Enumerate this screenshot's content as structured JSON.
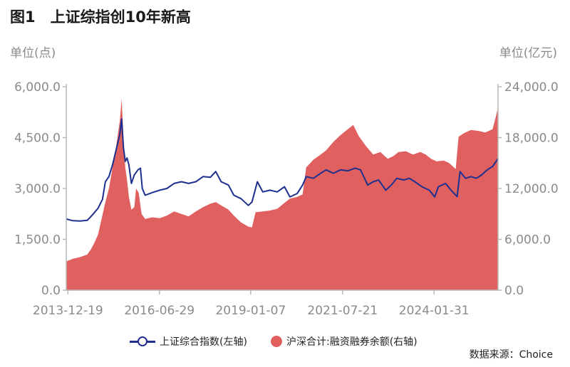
{
  "figure": {
    "title": "图1　上证综指创10年新高",
    "source": "数据来源：Choice"
  },
  "colors": {
    "index_line": "#1d2f8f",
    "margin_area": "#e06060"
  },
  "chart_data": {
    "type": "line+area",
    "title": "图1　上证综指创10年新高",
    "left_unit": "单位(点)",
    "right_unit": "单位(亿元)",
    "x_ticks": [
      "2013-12-19",
      "2016-06-29",
      "2019-01-07",
      "2021-07-21",
      "2024-01-31"
    ],
    "x_range": [
      2013.92,
      2025.85
    ],
    "y_left_ticks": [
      "6,000.0",
      "4,500.0",
      "3,000.0",
      "1,500.0",
      "0.0"
    ],
    "y_left_range": [
      0,
      6000
    ],
    "y_right_ticks": [
      "24,000.0",
      "18,000.0",
      "12,000.0",
      "6,000.0",
      "0.0"
    ],
    "y_right_range": [
      0,
      24000
    ],
    "grid": false,
    "legend_position": "bottom",
    "series": [
      {
        "name": "上证综合指数(左轴)",
        "kind": "line",
        "axis": "left",
        "points": [
          [
            2013.92,
            2100
          ],
          [
            2014.1,
            2050
          ],
          [
            2014.3,
            2040
          ],
          [
            2014.5,
            2060
          ],
          [
            2014.65,
            2230
          ],
          [
            2014.8,
            2420
          ],
          [
            2014.92,
            2680
          ],
          [
            2015.0,
            3200
          ],
          [
            2015.1,
            3350
          ],
          [
            2015.2,
            3700
          ],
          [
            2015.3,
            4150
          ],
          [
            2015.4,
            4600
          ],
          [
            2015.45,
            5050
          ],
          [
            2015.5,
            4200
          ],
          [
            2015.55,
            3800
          ],
          [
            2015.6,
            3900
          ],
          [
            2015.65,
            3700
          ],
          [
            2015.72,
            3150
          ],
          [
            2015.8,
            3400
          ],
          [
            2015.9,
            3550
          ],
          [
            2015.97,
            3600
          ],
          [
            2016.02,
            3000
          ],
          [
            2016.1,
            2800
          ],
          [
            2016.3,
            2880
          ],
          [
            2016.5,
            2950
          ],
          [
            2016.7,
            3000
          ],
          [
            2016.9,
            3150
          ],
          [
            2017.1,
            3200
          ],
          [
            2017.3,
            3150
          ],
          [
            2017.5,
            3200
          ],
          [
            2017.7,
            3350
          ],
          [
            2017.9,
            3330
          ],
          [
            2018.05,
            3500
          ],
          [
            2018.2,
            3200
          ],
          [
            2018.4,
            3100
          ],
          [
            2018.55,
            2800
          ],
          [
            2018.75,
            2700
          ],
          [
            2018.95,
            2500
          ],
          [
            2019.05,
            2600
          ],
          [
            2019.2,
            3200
          ],
          [
            2019.35,
            2900
          ],
          [
            2019.55,
            2950
          ],
          [
            2019.75,
            2900
          ],
          [
            2019.95,
            3050
          ],
          [
            2020.1,
            2750
          ],
          [
            2020.3,
            2850
          ],
          [
            2020.45,
            3100
          ],
          [
            2020.55,
            3350
          ],
          [
            2020.75,
            3300
          ],
          [
            2020.95,
            3450
          ],
          [
            2021.1,
            3550
          ],
          [
            2021.3,
            3450
          ],
          [
            2021.5,
            3550
          ],
          [
            2021.7,
            3520
          ],
          [
            2021.9,
            3600
          ],
          [
            2022.05,
            3550
          ],
          [
            2022.25,
            3100
          ],
          [
            2022.4,
            3200
          ],
          [
            2022.55,
            3250
          ],
          [
            2022.75,
            2950
          ],
          [
            2022.9,
            3100
          ],
          [
            2023.05,
            3300
          ],
          [
            2023.25,
            3250
          ],
          [
            2023.4,
            3300
          ],
          [
            2023.55,
            3200
          ],
          [
            2023.75,
            3050
          ],
          [
            2023.95,
            2950
          ],
          [
            2024.1,
            2750
          ],
          [
            2024.2,
            3050
          ],
          [
            2024.4,
            3150
          ],
          [
            2024.55,
            2950
          ],
          [
            2024.72,
            2760
          ],
          [
            2024.8,
            3500
          ],
          [
            2024.95,
            3300
          ],
          [
            2025.1,
            3350
          ],
          [
            2025.25,
            3300
          ],
          [
            2025.4,
            3400
          ],
          [
            2025.55,
            3550
          ],
          [
            2025.7,
            3650
          ],
          [
            2025.85,
            3880
          ]
        ]
      },
      {
        "name": "沪深合计:融资融券余额(右轴)",
        "kind": "area",
        "axis": "right",
        "points": [
          [
            2013.92,
            3400
          ],
          [
            2014.1,
            3700
          ],
          [
            2014.3,
            3900
          ],
          [
            2014.5,
            4200
          ],
          [
            2014.6,
            4800
          ],
          [
            2014.7,
            5600
          ],
          [
            2014.8,
            6600
          ],
          [
            2014.9,
            8500
          ],
          [
            2015.0,
            10400
          ],
          [
            2015.1,
            12000
          ],
          [
            2015.2,
            14500
          ],
          [
            2015.3,
            17000
          ],
          [
            2015.4,
            20000
          ],
          [
            2015.45,
            22600
          ],
          [
            2015.5,
            18000
          ],
          [
            2015.55,
            14500
          ],
          [
            2015.6,
            13000
          ],
          [
            2015.65,
            11000
          ],
          [
            2015.72,
            9500
          ],
          [
            2015.8,
            9800
          ],
          [
            2015.85,
            12000
          ],
          [
            2015.92,
            11500
          ],
          [
            2016.0,
            9000
          ],
          [
            2016.1,
            8400
          ],
          [
            2016.3,
            8600
          ],
          [
            2016.5,
            8500
          ],
          [
            2016.7,
            8800
          ],
          [
            2016.9,
            9300
          ],
          [
            2017.1,
            9000
          ],
          [
            2017.3,
            8700
          ],
          [
            2017.5,
            9300
          ],
          [
            2017.7,
            9800
          ],
          [
            2017.9,
            10200
          ],
          [
            2018.05,
            10400
          ],
          [
            2018.2,
            10000
          ],
          [
            2018.4,
            9500
          ],
          [
            2018.55,
            8800
          ],
          [
            2018.75,
            8000
          ],
          [
            2018.95,
            7500
          ],
          [
            2019.05,
            7400
          ],
          [
            2019.15,
            9200
          ],
          [
            2019.35,
            9300
          ],
          [
            2019.55,
            9400
          ],
          [
            2019.75,
            9600
          ],
          [
            2019.95,
            10300
          ],
          [
            2020.1,
            10800
          ],
          [
            2020.3,
            11000
          ],
          [
            2020.45,
            11300
          ],
          [
            2020.55,
            14500
          ],
          [
            2020.75,
            15400
          ],
          [
            2020.95,
            16000
          ],
          [
            2021.1,
            16500
          ],
          [
            2021.3,
            17500
          ],
          [
            2021.5,
            18300
          ],
          [
            2021.7,
            19000
          ],
          [
            2021.85,
            19500
          ],
          [
            2022.0,
            18200
          ],
          [
            2022.2,
            17000
          ],
          [
            2022.4,
            16000
          ],
          [
            2022.6,
            16300
          ],
          [
            2022.8,
            15500
          ],
          [
            2022.95,
            15800
          ],
          [
            2023.1,
            16300
          ],
          [
            2023.3,
            16400
          ],
          [
            2023.5,
            16000
          ],
          [
            2023.7,
            16300
          ],
          [
            2023.85,
            16000
          ],
          [
            2024.0,
            15500
          ],
          [
            2024.15,
            15200
          ],
          [
            2024.35,
            15300
          ],
          [
            2024.5,
            15000
          ],
          [
            2024.68,
            14300
          ],
          [
            2024.76,
            18100
          ],
          [
            2024.9,
            18500
          ],
          [
            2025.1,
            18900
          ],
          [
            2025.3,
            18800
          ],
          [
            2025.5,
            18600
          ],
          [
            2025.7,
            19000
          ],
          [
            2025.85,
            21500
          ]
        ]
      }
    ]
  }
}
